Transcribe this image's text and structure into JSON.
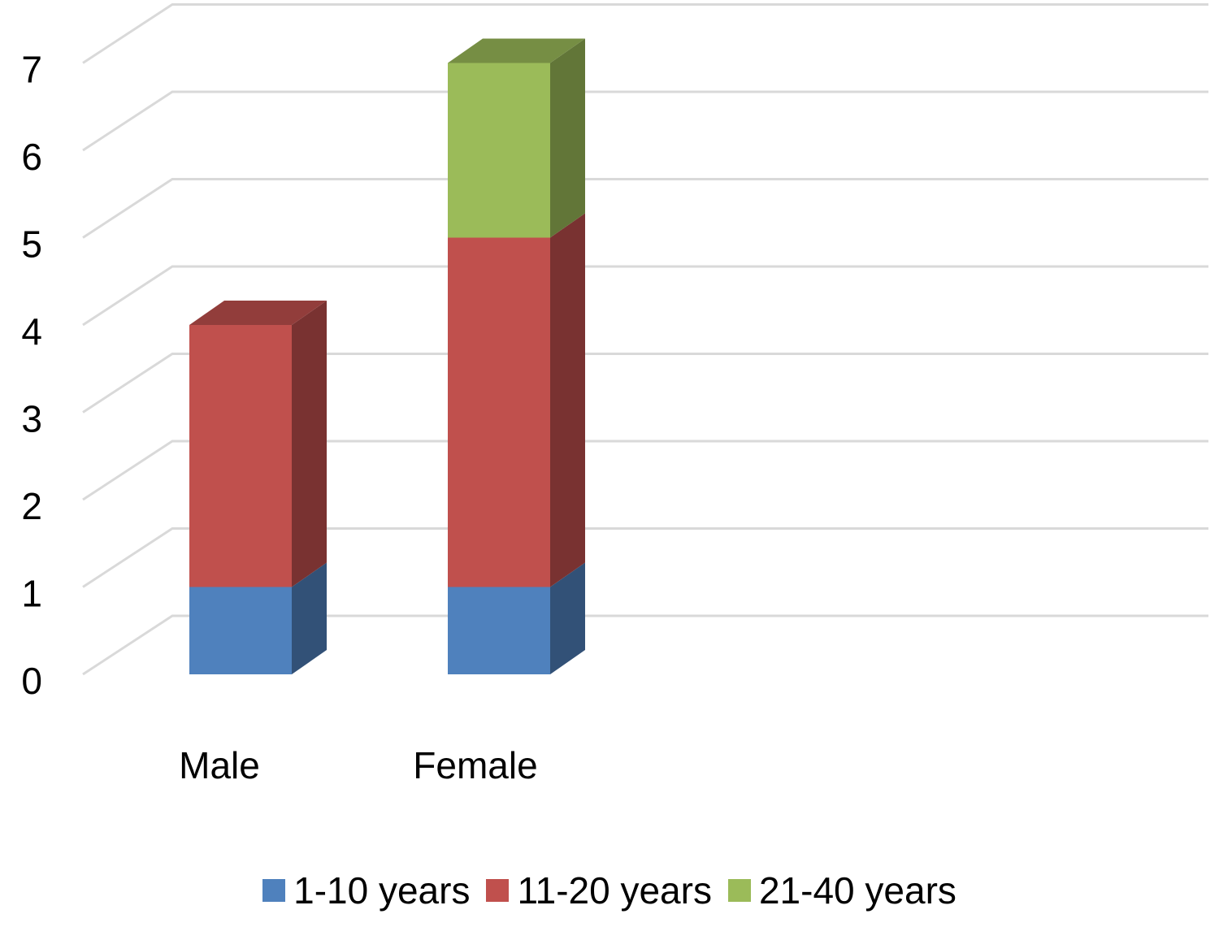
{
  "chart_data": {
    "type": "bar",
    "stacked": true,
    "three_d": true,
    "categories": [
      "Male",
      "Female"
    ],
    "series": [
      {
        "name": "1-10 years",
        "values": [
          1,
          1
        ],
        "color": "#4F81BD"
      },
      {
        "name": "11-20 years",
        "values": [
          3,
          4
        ],
        "color": "#C0504D"
      },
      {
        "name": "21-40 years",
        "values": [
          0,
          2
        ],
        "color": "#9BBB59"
      }
    ],
    "y_ticks": [
      "0",
      "1",
      "2",
      "3",
      "4",
      "5",
      "6",
      "7"
    ],
    "ylim": [
      0,
      7.5
    ],
    "grid": true,
    "legend_position": "bottom",
    "title": "",
    "xlabel": "",
    "ylabel": ""
  }
}
